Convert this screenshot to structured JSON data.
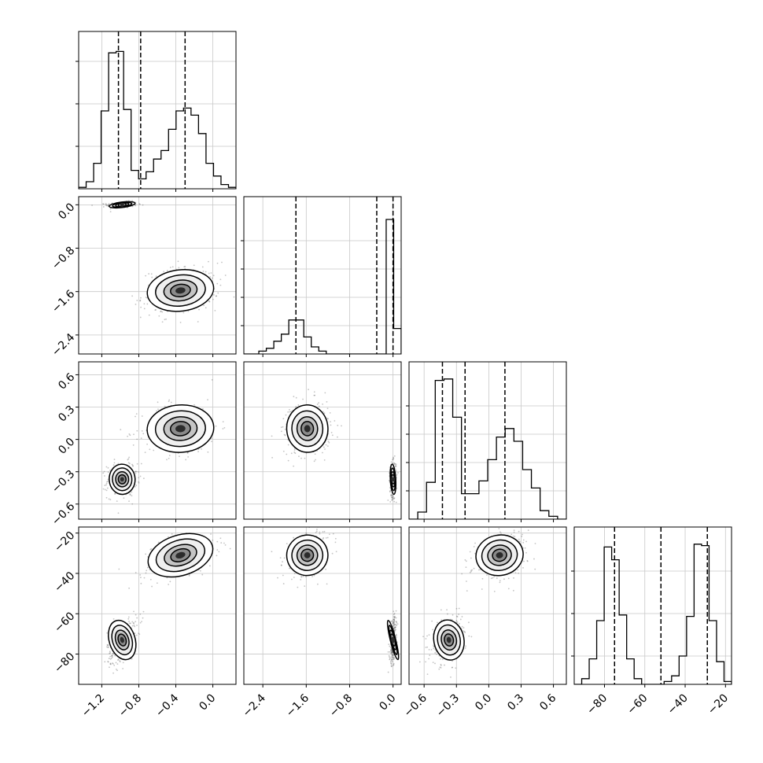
{
  "chart_data": {
    "type": "corner",
    "grid": true,
    "parameters": [
      {
        "range": [
          -1.45,
          0.25
        ],
        "ticks": [
          -1.2,
          -0.8,
          -0.4,
          0.0
        ],
        "tick_labels": [
          "−1.2",
          "−0.8",
          "−0.4",
          "0.0"
        ],
        "quantiles": [
          -1.02,
          -0.78,
          -0.3
        ]
      },
      {
        "range": [
          -2.75,
          0.15
        ],
        "ticks": [
          -2.4,
          -1.6,
          -0.8,
          0.0
        ],
        "tick_labels": [
          "−2.4",
          "−1.6",
          "−0.8",
          "0.0"
        ],
        "quantiles": [
          -1.79,
          -0.3,
          0.0
        ]
      },
      {
        "range": [
          -0.74,
          0.72
        ],
        "ticks": [
          -0.6,
          -0.3,
          0.0,
          0.3,
          0.6
        ],
        "tick_labels": [
          "−0.6",
          "−0.3",
          "0.0",
          "0.3",
          "0.6"
        ],
        "quantiles": [
          -0.43,
          -0.22,
          0.15
        ]
      },
      {
        "range": [
          -95,
          -17
        ],
        "ticks": [
          -80,
          -60,
          -40,
          -20
        ],
        "tick_labels": [
          "−80",
          "−60",
          "−40",
          "−20"
        ],
        "quantiles": [
          -75,
          -52,
          -29
        ]
      }
    ],
    "histograms": [
      {
        "counts": [
          0.01,
          0.05,
          0.18,
          0.55,
          0.96,
          0.97,
          0.56,
          0.13,
          0.07,
          0.12,
          0.21,
          0.27,
          0.42,
          0.55,
          0.57,
          0.52,
          0.39,
          0.18,
          0.09,
          0.03,
          0.01
        ],
        "yticks": [
          0.3,
          0.6,
          0.9
        ]
      },
      {
        "counts": [
          0,
          0,
          0.02,
          0.04,
          0.09,
          0.14,
          0.24,
          0.24,
          0.12,
          0.05,
          0.02,
          0,
          0,
          0,
          0,
          0,
          0,
          0.0,
          0,
          0.95,
          0.18
        ],
        "yticks": [
          0.2,
          0.4,
          0.6,
          0.8
        ]
      },
      {
        "counts": [
          0.0,
          0.05,
          0.26,
          0.98,
          0.99,
          0.72,
          0.18,
          0.18,
          0.27,
          0.42,
          0.58,
          0.64,
          0.55,
          0.35,
          0.22,
          0.06,
          0.02,
          0.0
        ],
        "yticks": [
          0.2,
          0.4,
          0.6,
          0.8
        ]
      },
      {
        "counts": [
          0.0,
          0.04,
          0.18,
          0.45,
          0.97,
          0.88,
          0.49,
          0.18,
          0.04,
          0.0,
          0,
          0,
          0.02,
          0.06,
          0.2,
          0.48,
          0.99,
          0.98,
          0.45,
          0.16,
          0.02
        ],
        "yticks": [
          0.2,
          0.5,
          0.8
        ]
      }
    ],
    "modes": [
      {
        "weight": 0.48,
        "mean": [
          -0.98,
          0.0,
          -0.37,
          -73
        ],
        "sd": [
          0.07,
          0.025,
          0.07,
          5
        ]
      },
      {
        "weight": 0.52,
        "mean": [
          -0.35,
          -1.58,
          0.1,
          -31
        ],
        "sd": [
          0.18,
          0.19,
          0.11,
          5
        ]
      }
    ]
  }
}
